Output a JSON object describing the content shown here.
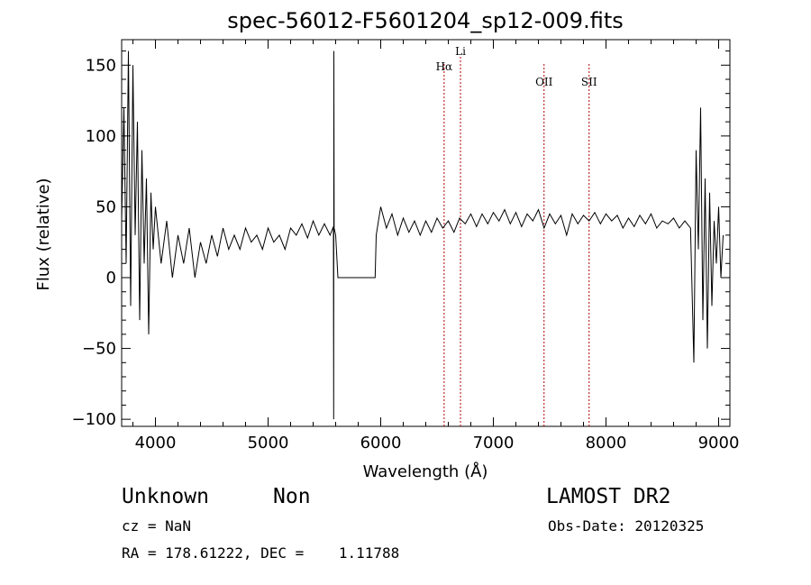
{
  "chart_data": {
    "type": "line",
    "title": "spec-56012-F5601204_sp12-009.fits",
    "xlabel": "Wavelength (Å)",
    "ylabel": "Flux (relative)",
    "xlim": [
      3700,
      9100
    ],
    "ylim": [
      -105,
      168
    ],
    "xticks": [
      4000,
      5000,
      6000,
      7000,
      8000,
      9000
    ],
    "yticks": [
      -100,
      -50,
      0,
      50,
      100,
      150
    ],
    "line_color": "#000000",
    "marker_color": "#b00000",
    "lines": [
      {
        "label": "Hα",
        "x": 6563
      },
      {
        "label": "Li",
        "x": 6708
      },
      {
        "label": "OII",
        "x": 7450
      },
      {
        "label": "SII",
        "x": 7850
      }
    ],
    "spectrum": [
      [
        3700,
        40
      ],
      [
        3720,
        120
      ],
      [
        3740,
        10
      ],
      [
        3760,
        160
      ],
      [
        3780,
        -20
      ],
      [
        3800,
        150
      ],
      [
        3820,
        30
      ],
      [
        3840,
        110
      ],
      [
        3860,
        -30
      ],
      [
        3880,
        90
      ],
      [
        3900,
        10
      ],
      [
        3920,
        70
      ],
      [
        3940,
        -40
      ],
      [
        3960,
        60
      ],
      [
        3980,
        20
      ],
      [
        4000,
        50
      ],
      [
        4050,
        10
      ],
      [
        4100,
        40
      ],
      [
        4150,
        0
      ],
      [
        4200,
        30
      ],
      [
        4250,
        10
      ],
      [
        4300,
        35
      ],
      [
        4350,
        0
      ],
      [
        4400,
        25
      ],
      [
        4450,
        10
      ],
      [
        4500,
        30
      ],
      [
        4550,
        15
      ],
      [
        4600,
        35
      ],
      [
        4650,
        20
      ],
      [
        4700,
        30
      ],
      [
        4750,
        20
      ],
      [
        4800,
        35
      ],
      [
        4850,
        25
      ],
      [
        4900,
        30
      ],
      [
        4950,
        20
      ],
      [
        5000,
        35
      ],
      [
        5050,
        25
      ],
      [
        5100,
        30
      ],
      [
        5150,
        20
      ],
      [
        5200,
        35
      ],
      [
        5250,
        30
      ],
      [
        5300,
        38
      ],
      [
        5350,
        28
      ],
      [
        5400,
        40
      ],
      [
        5450,
        30
      ],
      [
        5500,
        38
      ],
      [
        5550,
        30
      ],
      [
        5580,
        36
      ],
      [
        5582,
        -100
      ],
      [
        5584,
        160
      ],
      [
        5586,
        35
      ],
      [
        5600,
        30
      ],
      [
        5620,
        0
      ],
      [
        5950,
        0
      ],
      [
        5960,
        30
      ],
      [
        5980,
        40
      ],
      [
        6000,
        50
      ],
      [
        6050,
        35
      ],
      [
        6100,
        45
      ],
      [
        6150,
        30
      ],
      [
        6200,
        42
      ],
      [
        6250,
        32
      ],
      [
        6300,
        40
      ],
      [
        6350,
        30
      ],
      [
        6400,
        40
      ],
      [
        6450,
        32
      ],
      [
        6500,
        42
      ],
      [
        6550,
        35
      ],
      [
        6600,
        40
      ],
      [
        6650,
        32
      ],
      [
        6700,
        42
      ],
      [
        6750,
        38
      ],
      [
        6800,
        45
      ],
      [
        6850,
        36
      ],
      [
        6900,
        45
      ],
      [
        6950,
        38
      ],
      [
        7000,
        46
      ],
      [
        7050,
        40
      ],
      [
        7100,
        48
      ],
      [
        7150,
        38
      ],
      [
        7200,
        46
      ],
      [
        7250,
        36
      ],
      [
        7300,
        45
      ],
      [
        7350,
        40
      ],
      [
        7400,
        48
      ],
      [
        7450,
        35
      ],
      [
        7500,
        45
      ],
      [
        7550,
        38
      ],
      [
        7600,
        44
      ],
      [
        7650,
        30
      ],
      [
        7700,
        45
      ],
      [
        7750,
        38
      ],
      [
        7800,
        44
      ],
      [
        7850,
        40
      ],
      [
        7900,
        46
      ],
      [
        7950,
        38
      ],
      [
        8000,
        45
      ],
      [
        8050,
        40
      ],
      [
        8100,
        44
      ],
      [
        8150,
        35
      ],
      [
        8200,
        42
      ],
      [
        8250,
        36
      ],
      [
        8300,
        44
      ],
      [
        8350,
        38
      ],
      [
        8400,
        45
      ],
      [
        8450,
        35
      ],
      [
        8500,
        40
      ],
      [
        8550,
        38
      ],
      [
        8600,
        42
      ],
      [
        8650,
        35
      ],
      [
        8700,
        40
      ],
      [
        8750,
        35
      ],
      [
        8780,
        -60
      ],
      [
        8800,
        90
      ],
      [
        8820,
        20
      ],
      [
        8840,
        120
      ],
      [
        8860,
        -30
      ],
      [
        8880,
        70
      ],
      [
        8900,
        -50
      ],
      [
        8920,
        60
      ],
      [
        8940,
        -20
      ],
      [
        8960,
        40
      ],
      [
        8980,
        10
      ],
      [
        9000,
        50
      ],
      [
        9020,
        0
      ],
      [
        9040,
        30
      ]
    ]
  },
  "footer": {
    "object_class": "Unknown",
    "object_subclass": "Non",
    "survey": "LAMOST DR2",
    "cz": "cz = NaN",
    "obs_date": "Obs-Date: 20120325",
    "coords": "RA = 178.61222, DEC =    1.11788"
  }
}
